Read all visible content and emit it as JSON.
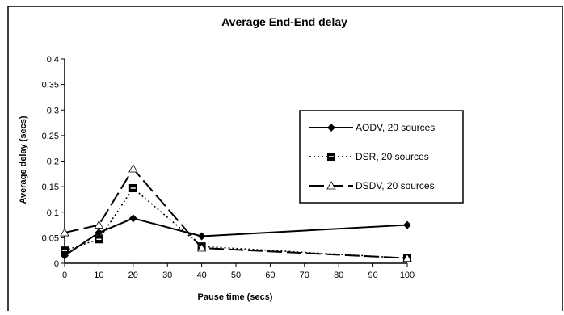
{
  "chart_data": {
    "type": "line",
    "title": "Average End-End delay",
    "xlabel": "Pause time (secs)",
    "ylabel": "Average delay (secs)",
    "xlim": [
      0,
      100
    ],
    "ylim": [
      0,
      0.4
    ],
    "x_ticks": [
      "0",
      "10",
      "20",
      "30",
      "40",
      "50",
      "60",
      "70",
      "80",
      "90",
      "100"
    ],
    "y_ticks": [
      "0",
      "0.05",
      "0.1",
      "0.15",
      "0.2",
      "0.25",
      "0.3",
      "0.35",
      "0.4"
    ],
    "grid": false,
    "legend_position": "right",
    "x": [
      0,
      10,
      20,
      40,
      100
    ],
    "series": [
      {
        "name": "AODV, 20 sources",
        "style": "solid",
        "marker": "diamond",
        "values": [
          0.015,
          0.06,
          0.088,
          0.053,
          0.075
        ]
      },
      {
        "name": "DSR, 20 sources",
        "style": "dotted",
        "marker": "square",
        "values": [
          0.025,
          0.047,
          0.147,
          0.033,
          0.01
        ]
      },
      {
        "name": "DSDV, 20 sources",
        "style": "dashed",
        "marker": "triangle",
        "values": [
          0.06,
          0.075,
          0.185,
          0.03,
          0.01
        ]
      }
    ]
  }
}
